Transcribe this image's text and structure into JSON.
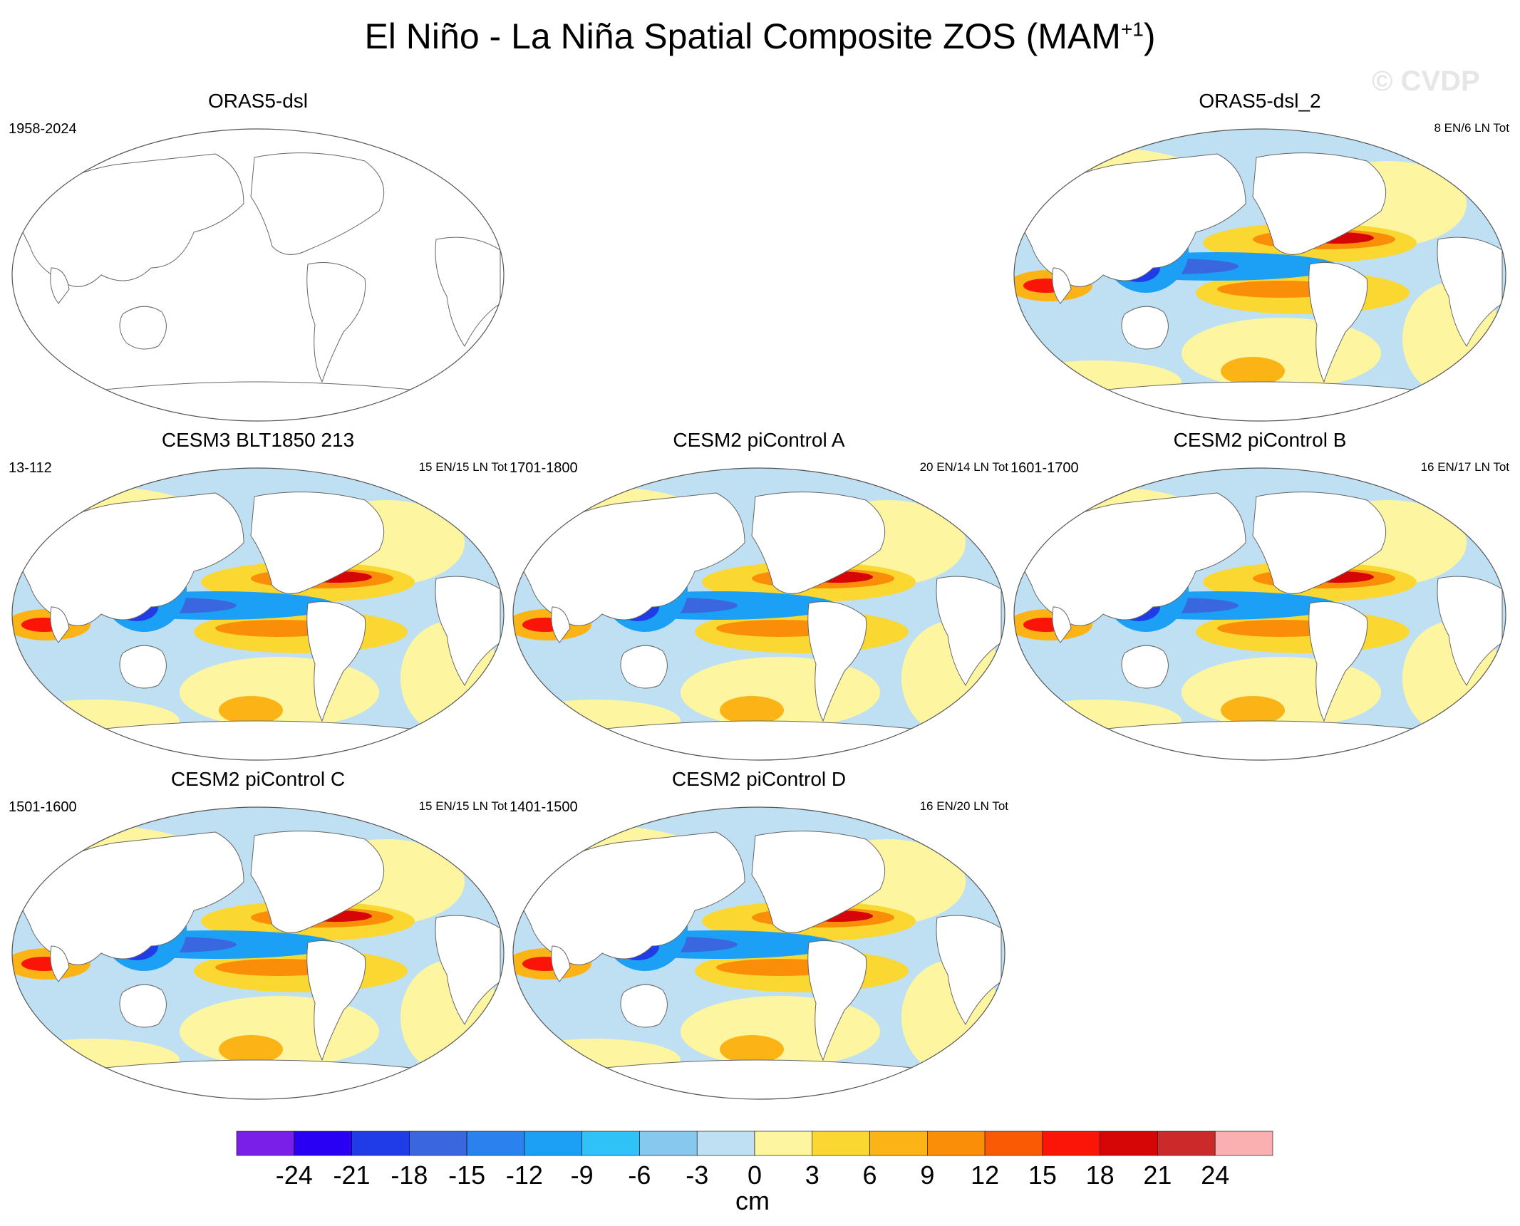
{
  "figure": {
    "title_main": "El Niño - La Niña Spatial Composite ZOS (MAM",
    "title_sup": "+1",
    "title_close": ")",
    "watermark": "© CVDP"
  },
  "chart_data": {
    "type": "map-panels",
    "variable": "ZOS",
    "season": "MAM+1",
    "panels": [
      {
        "id": "p1",
        "title": "ORAS5-dsl",
        "period": "1958-2024",
        "events": "",
        "has_data": false
      },
      {
        "id": "p2",
        "title": "ORAS5-dsl_2",
        "period": "",
        "events": "8 EN/6 LN Tot",
        "has_data": true
      },
      {
        "id": "p3",
        "title": "CESM3 BLT1850 213",
        "period": "13-112",
        "events": "15 EN/15 LN Tot",
        "has_data": true
      },
      {
        "id": "p4",
        "title": "CESM2 piControl A",
        "period": "1701-1800",
        "events": "20 EN/14 LN Tot",
        "has_data": true
      },
      {
        "id": "p5",
        "title": "CESM2 piControl B",
        "period": "1601-1700",
        "events": "16 EN/17 LN Tot",
        "has_data": true
      },
      {
        "id": "p6",
        "title": "CESM2 piControl C",
        "period": "1501-1600",
        "events": "15 EN/15 LN Tot",
        "has_data": true
      },
      {
        "id": "p7",
        "title": "CESM2 piControl D",
        "period": "1401-1500",
        "events": "16 EN/20 LN Tot",
        "has_data": true
      }
    ],
    "colorbar": {
      "levels": [
        -24,
        -21,
        -18,
        -15,
        -12,
        -9,
        -6,
        -3,
        0,
        3,
        6,
        9,
        12,
        15,
        18,
        21,
        24
      ],
      "tick_labels": [
        "-24",
        "-21",
        "-18",
        "-15",
        "-12",
        "-9",
        "-6",
        "-3",
        "0",
        "3",
        "6",
        "9",
        "12",
        "15",
        "18",
        "21",
        "24"
      ],
      "colors": [
        "#7a1fe8",
        "#2a00f5",
        "#1f3ce8",
        "#3a66e0",
        "#2b82ee",
        "#1ba0f5",
        "#2ec2f7",
        "#86c8ee",
        "#bfe0f2",
        "#fdf5a0",
        "#fbd732",
        "#fbb315",
        "#fb8e08",
        "#fb5a05",
        "#fb1508",
        "#d60606",
        "#cc2a2a",
        "#fab0b0"
      ],
      "units": "cm"
    }
  }
}
